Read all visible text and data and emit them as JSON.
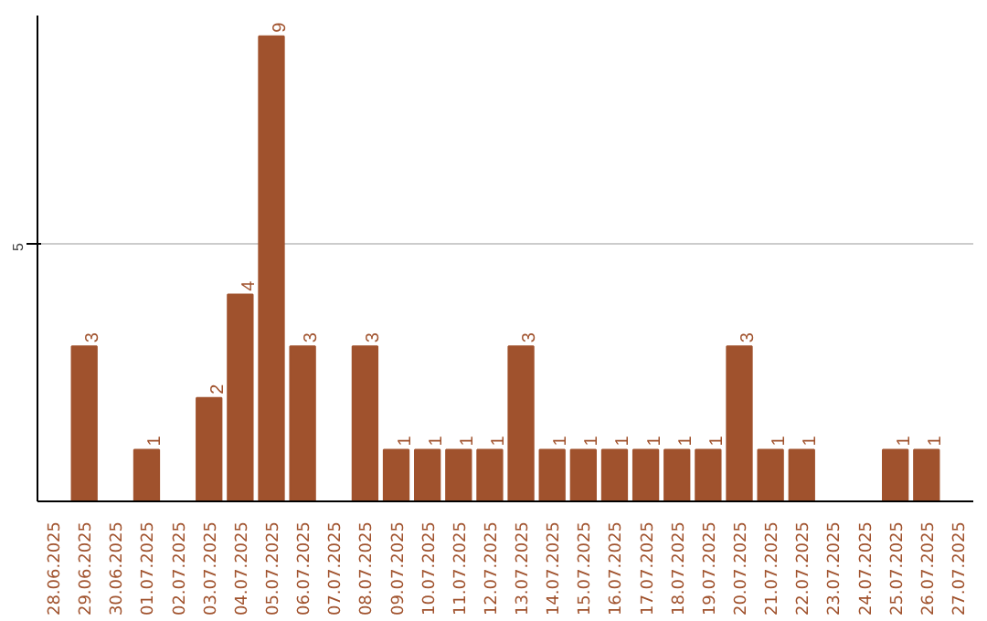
{
  "chart_data": {
    "type": "bar",
    "categories": [
      "28.06.2025",
      "29.06.2025",
      "30.06.2025",
      "01.07.2025",
      "02.07.2025",
      "03.07.2025",
      "04.07.2025",
      "05.07.2025",
      "06.07.2025",
      "07.07.2025",
      "08.07.2025",
      "09.07.2025",
      "10.07.2025",
      "11.07.2025",
      "12.07.2025",
      "13.07.2025",
      "14.07.2025",
      "15.07.2025",
      "16.07.2025",
      "17.07.2025",
      "18.07.2025",
      "19.07.2025",
      "20.07.2025",
      "21.07.2025",
      "22.07.2025",
      "23.07.2025",
      "24.07.2025",
      "25.07.2025",
      "26.07.2025",
      "27.07.2025"
    ],
    "values": [
      0,
      3,
      0,
      1,
      0,
      2,
      4,
      9,
      3,
      0,
      3,
      1,
      1,
      1,
      1,
      3,
      1,
      1,
      1,
      1,
      1,
      1,
      3,
      1,
      1,
      0,
      0,
      1,
      1,
      0
    ],
    "value_labels": [
      null,
      "3",
      null,
      "1",
      null,
      "2",
      "4",
      "9",
      "3",
      null,
      "3",
      "1",
      "1",
      "1",
      "1",
      "3",
      "1",
      "1",
      "1",
      "1",
      "1",
      "1",
      "3",
      "1",
      "1",
      null,
      null,
      "1",
      "1",
      null
    ],
    "color": "#a0522d",
    "ylim": [
      0,
      9.4
    ],
    "yticks": [
      5
    ],
    "grid": "y"
  }
}
